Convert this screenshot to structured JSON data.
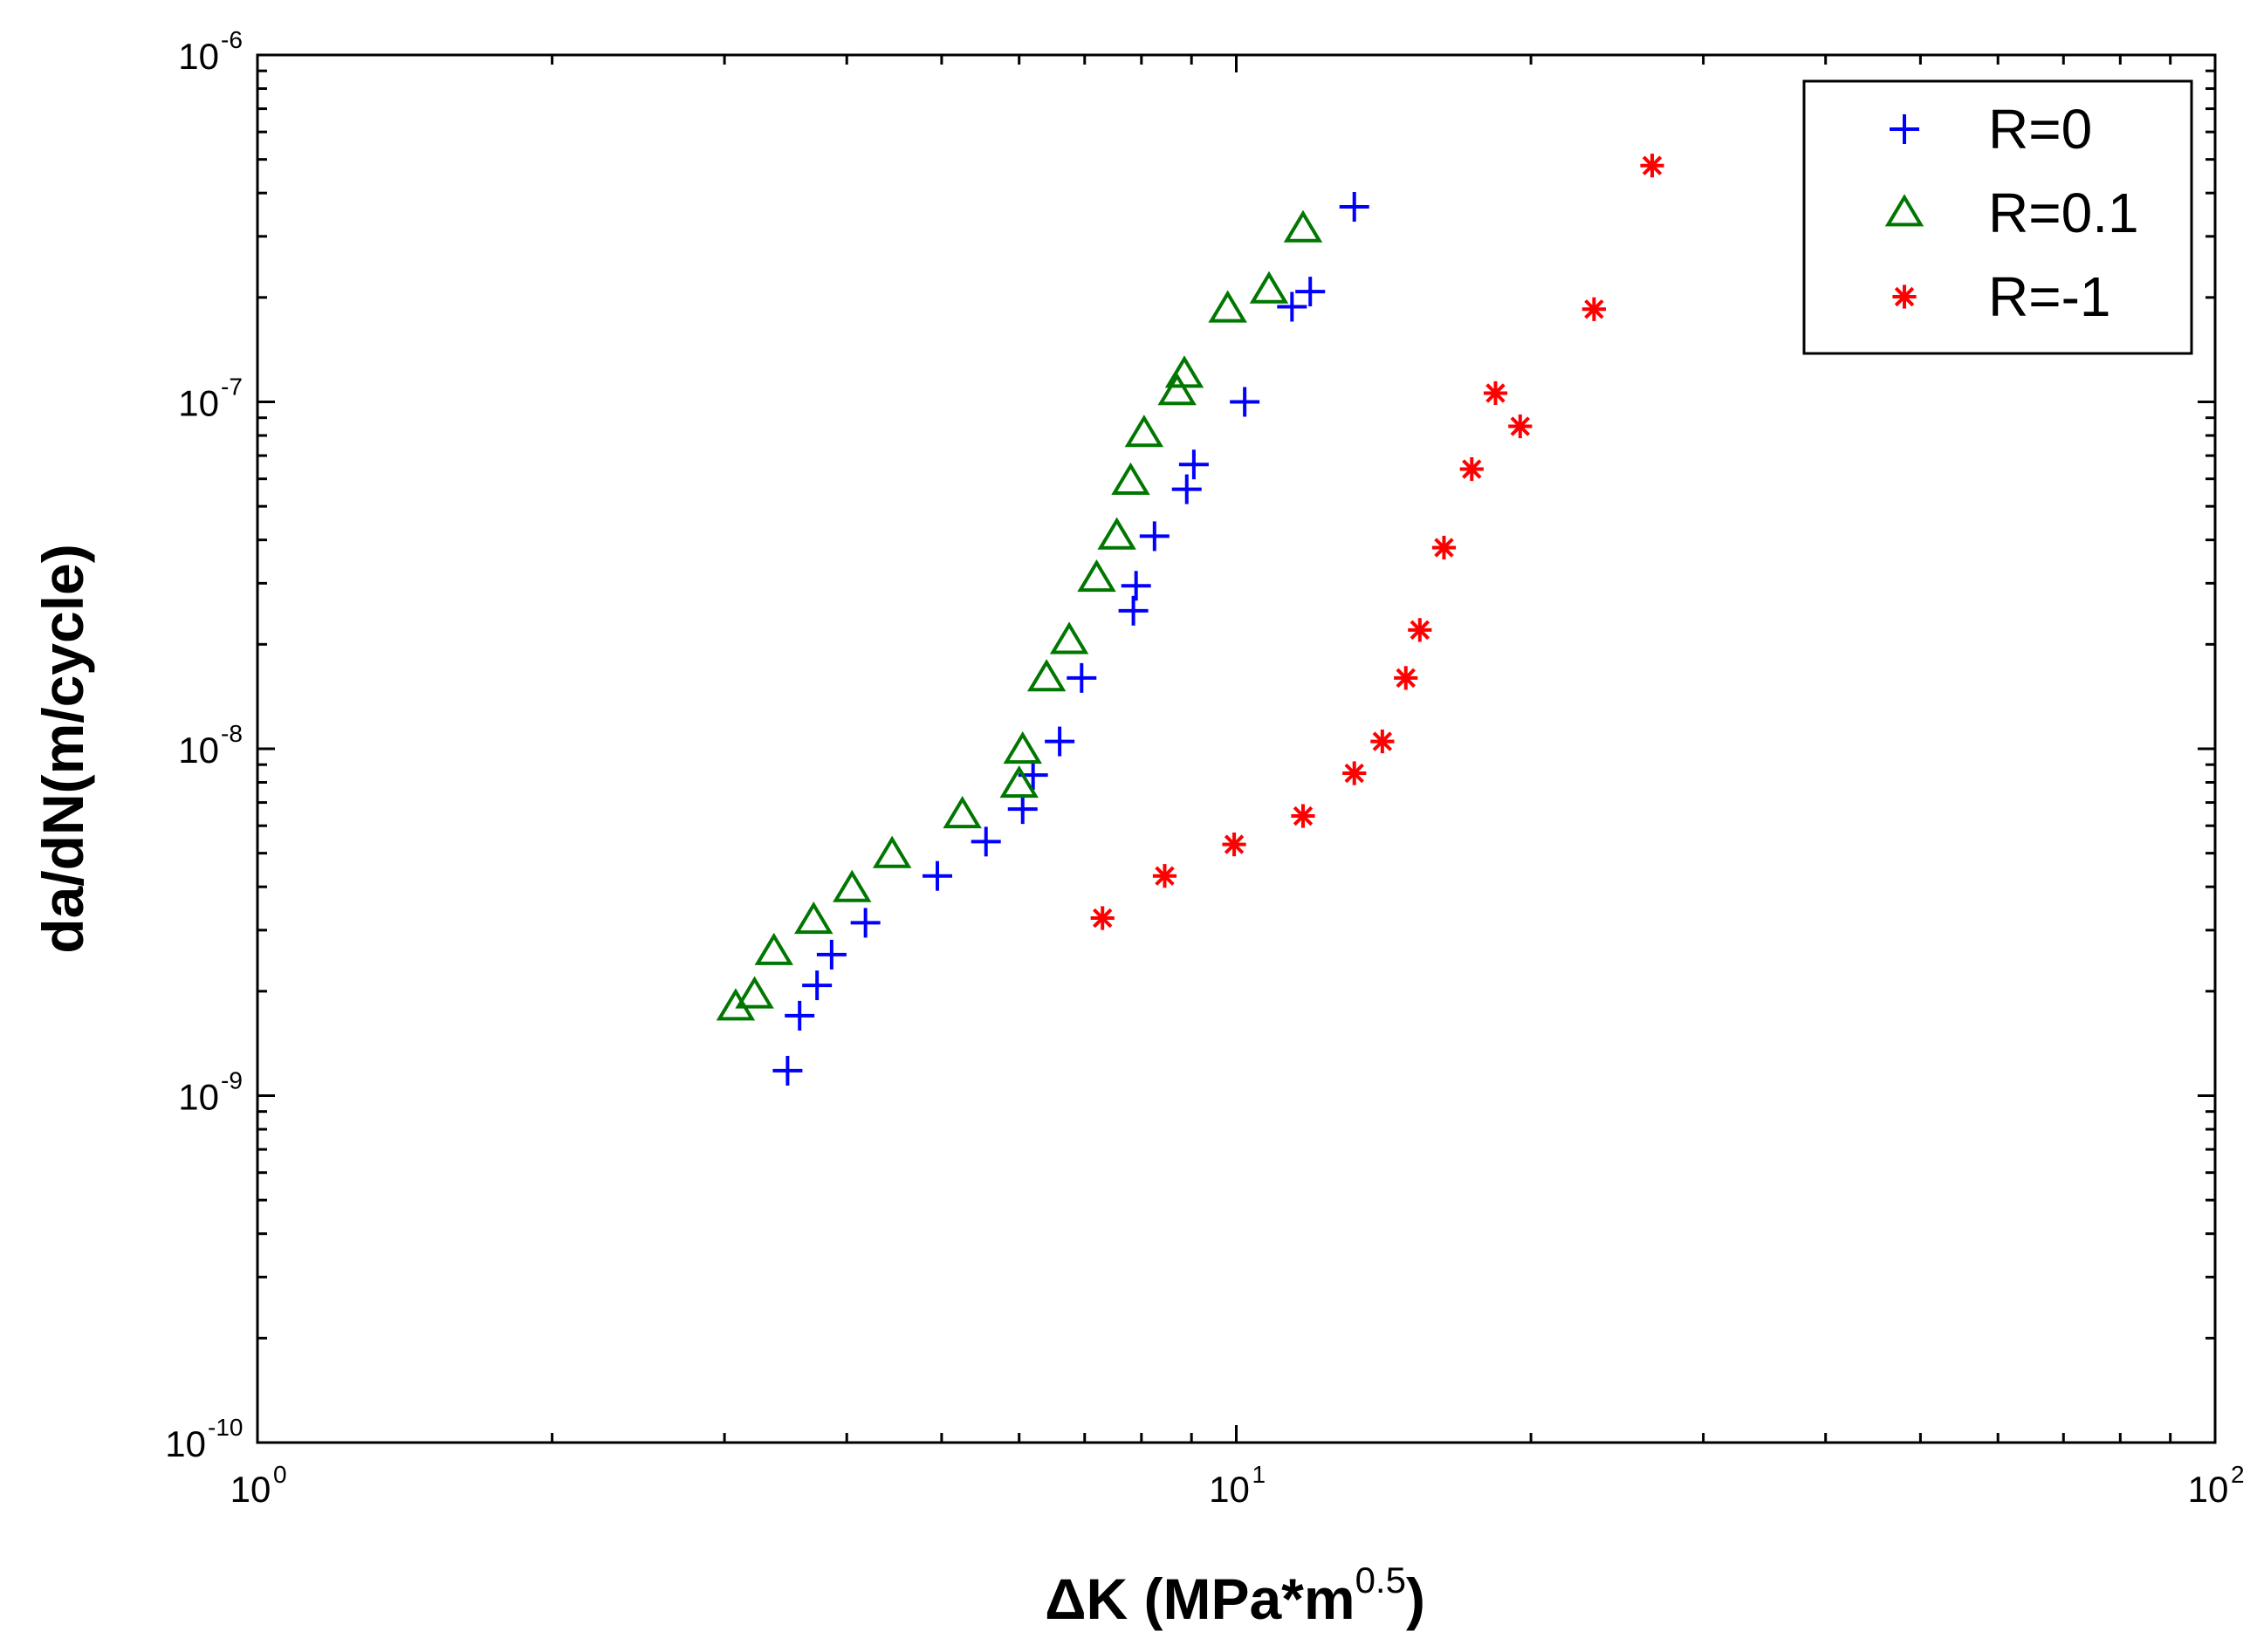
{
  "chart_data": {
    "type": "scatter",
    "title": "",
    "xlabel": "ΔK (MPa*m",
    "xlabel_sup": "0.5",
    "xlabel_close": ")",
    "ylabel": "da/dN(m/cycle)",
    "xscale": "log",
    "yscale": "log",
    "xlim": [
      1,
      100
    ],
    "ylim": [
      1e-10,
      1e-06
    ],
    "x_ticks": [
      {
        "value": 1,
        "base": "10",
        "exp": "0"
      },
      {
        "value": 10,
        "base": "10",
        "exp": "1"
      },
      {
        "value": 100,
        "base": "10",
        "exp": "2"
      }
    ],
    "y_ticks": [
      {
        "value": 1e-10,
        "base": "10",
        "exp": "-10"
      },
      {
        "value": 1e-09,
        "base": "10",
        "exp": "-9"
      },
      {
        "value": 1e-08,
        "base": "10",
        "exp": "-8"
      },
      {
        "value": 1e-07,
        "base": "10",
        "exp": "-7"
      },
      {
        "value": 1e-06,
        "base": "10",
        "exp": "-6"
      }
    ],
    "grid": false,
    "legend_position": "top-right",
    "series": [
      {
        "name": "R=0",
        "marker": "plus",
        "color": "#0000ff",
        "points": [
          [
            3.48,
            1.18e-09
          ],
          [
            3.58,
            1.7e-09
          ],
          [
            3.73,
            2.08e-09
          ],
          [
            3.86,
            2.55e-09
          ],
          [
            4.18,
            3.15e-09
          ],
          [
            4.95,
            4.3e-09
          ],
          [
            5.55,
            5.4e-09
          ],
          [
            6.05,
            6.7e-09
          ],
          [
            6.2,
            8.4e-09
          ],
          [
            6.6,
            1.05e-08
          ],
          [
            6.95,
            1.6e-08
          ],
          [
            7.85,
            2.5e-08
          ],
          [
            7.9,
            2.95e-08
          ],
          [
            8.25,
            4.1e-08
          ],
          [
            8.9,
            5.6e-08
          ],
          [
            9.05,
            6.6e-08
          ],
          [
            10.2,
            1e-07
          ],
          [
            11.4,
            1.88e-07
          ],
          [
            11.9,
            2.08e-07
          ],
          [
            13.2,
            3.65e-07
          ]
        ]
      },
      {
        "name": "R=0.1",
        "marker": "triangle",
        "color": "#007700",
        "points": [
          [
            3.08,
            1.8e-09
          ],
          [
            3.22,
            1.95e-09
          ],
          [
            3.37,
            2.6e-09
          ],
          [
            3.7,
            3.2e-09
          ],
          [
            4.05,
            3.95e-09
          ],
          [
            4.45,
            4.95e-09
          ],
          [
            5.25,
            6.45e-09
          ],
          [
            6.0,
            7.9e-09
          ],
          [
            6.05,
            9.9e-09
          ],
          [
            6.4,
            1.6e-08
          ],
          [
            6.75,
            2.05e-08
          ],
          [
            7.2,
            3.1e-08
          ],
          [
            7.55,
            4.1e-08
          ],
          [
            7.8,
            5.9e-08
          ],
          [
            8.05,
            8.1e-08
          ],
          [
            8.7,
            1.07e-07
          ],
          [
            8.85,
            1.2e-07
          ],
          [
            9.8,
            1.85e-07
          ],
          [
            10.8,
            2.1e-07
          ],
          [
            11.7,
            3.15e-07
          ]
        ]
      },
      {
        "name": "R=-1",
        "marker": "asterisk",
        "color": "#ff0000",
        "points": [
          [
            7.3,
            3.25e-09
          ],
          [
            8.45,
            4.3e-09
          ],
          [
            9.95,
            5.3e-09
          ],
          [
            11.7,
            6.4e-09
          ],
          [
            13.2,
            8.5e-09
          ],
          [
            14.1,
            1.05e-08
          ],
          [
            14.9,
            1.6e-08
          ],
          [
            15.4,
            2.2e-08
          ],
          [
            16.3,
            3.8e-08
          ],
          [
            17.4,
            6.4e-08
          ],
          [
            18.4,
            1.06e-07
          ],
          [
            19.5,
            8.5e-08
          ],
          [
            23.2,
            1.85e-07
          ],
          [
            26.6,
            4.8e-07
          ]
        ]
      }
    ]
  }
}
